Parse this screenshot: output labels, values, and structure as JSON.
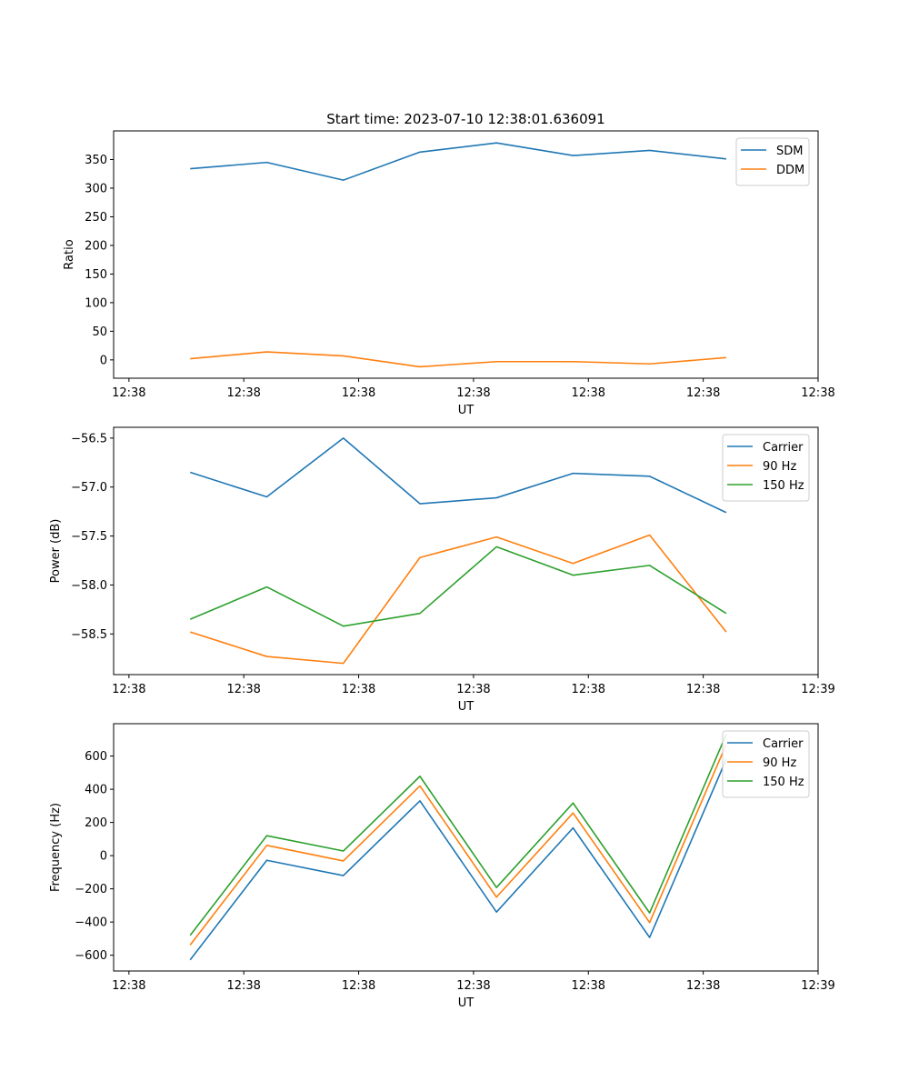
{
  "figure": {
    "title": "Start time: 2023-07-10 12:38:01.636091"
  },
  "chart_data": [
    {
      "type": "line",
      "title": "Start time: 2023-07-10 12:38:01.636091",
      "xlabel": "UT",
      "ylabel": "Ratio",
      "x": [
        1,
        2,
        3,
        4,
        5,
        6,
        7,
        8
      ],
      "xlim": [
        0,
        9.2
      ],
      "x_ticks": [
        0.2,
        1.7,
        3.2,
        4.7,
        6.2,
        7.7,
        9.2
      ],
      "x_tick_labels": [
        "12:38",
        "12:38",
        "12:38",
        "12:38",
        "12:38",
        "12:38",
        "12:38"
      ],
      "ylim": [
        -32,
        400
      ],
      "y_ticks": [
        0,
        50,
        100,
        150,
        200,
        250,
        300,
        350
      ],
      "y_tick_labels": [
        "0",
        "50",
        "100",
        "150",
        "200",
        "250",
        "300",
        "350"
      ],
      "legend_position": "top-right",
      "series": [
        {
          "name": "SDM",
          "color": "#1f77b4",
          "values": [
            334,
            345,
            314,
            363,
            379,
            357,
            366,
            351
          ]
        },
        {
          "name": "DDM",
          "color": "#ff7f0e",
          "values": [
            2,
            14,
            7,
            -12,
            -3,
            -3,
            -7,
            4
          ]
        }
      ]
    },
    {
      "type": "line",
      "title": "",
      "xlabel": "UT",
      "ylabel": "Power (dB)",
      "x": [
        1,
        2,
        3,
        4,
        5,
        6,
        7,
        8
      ],
      "xlim": [
        0,
        9.2
      ],
      "x_ticks": [
        0.2,
        1.7,
        3.2,
        4.7,
        6.2,
        7.7,
        9.2
      ],
      "x_tick_labels": [
        "12:38",
        "12:38",
        "12:38",
        "12:38",
        "12:38",
        "12:38",
        "12:39"
      ],
      "ylim": [
        -58.915,
        -56.39
      ],
      "y_ticks": [
        -58.5,
        -58.0,
        -57.5,
        -57.0,
        -56.5
      ],
      "y_tick_labels": [
        "−58.5",
        "−58.0",
        "−57.5",
        "−57.0",
        "−56.5"
      ],
      "legend_position": "top-right",
      "series": [
        {
          "name": "Carrier",
          "color": "#1f77b4",
          "values": [
            -56.85,
            -57.1,
            -56.5,
            -57.17,
            -57.11,
            -56.86,
            -56.89,
            -57.26
          ]
        },
        {
          "name": "90 Hz",
          "color": "#ff7f0e",
          "values": [
            -58.48,
            -58.73,
            -58.8,
            -57.72,
            -57.51,
            -57.78,
            -57.49,
            -58.48
          ]
        },
        {
          "name": "150 Hz",
          "color": "#2ca02c",
          "values": [
            -58.35,
            -58.02,
            -58.42,
            -58.29,
            -57.61,
            -57.9,
            -57.8,
            -58.29
          ]
        }
      ]
    },
    {
      "type": "line",
      "title": "",
      "xlabel": "UT",
      "ylabel": "Frequency (Hz)",
      "x": [
        1,
        2,
        3,
        4,
        5,
        6,
        7,
        8
      ],
      "xlim": [
        0,
        9.2
      ],
      "x_ticks": [
        0.2,
        1.7,
        3.2,
        4.7,
        6.2,
        7.7,
        9.2
      ],
      "x_tick_labels": [
        "12:38",
        "12:38",
        "12:38",
        "12:38",
        "12:38",
        "12:38",
        "12:39"
      ],
      "ylim": [
        -695,
        795
      ],
      "y_ticks": [
        -600,
        -400,
        -200,
        0,
        200,
        400,
        600
      ],
      "y_tick_labels": [
        "−600",
        "−400",
        "−200",
        "0",
        "200",
        "400",
        "600"
      ],
      "legend_position": "top-right",
      "series": [
        {
          "name": "Carrier",
          "color": "#1f77b4",
          "values": [
            -628,
            -28,
            -120,
            330,
            -340,
            167,
            -493,
            580
          ]
        },
        {
          "name": "90 Hz",
          "color": "#ff7f0e",
          "values": [
            -538,
            62,
            -32,
            420,
            -250,
            257,
            -403,
            670
          ]
        },
        {
          "name": "150 Hz",
          "color": "#2ca02c",
          "values": [
            -480,
            120,
            28,
            478,
            -192,
            317,
            -345,
            730
          ]
        }
      ]
    }
  ]
}
